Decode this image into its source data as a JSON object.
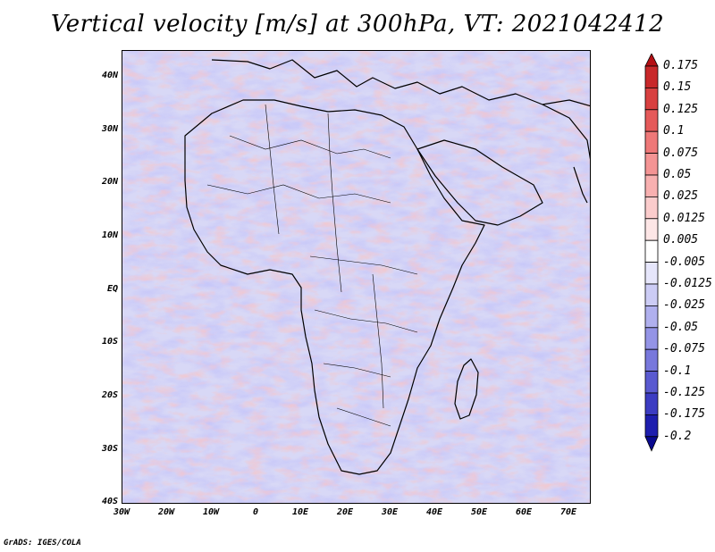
{
  "title": "Vertical velocity [m/s] at 300hPa, VT: 2021042412",
  "credit": "GrADS: IGES/COLA",
  "map": {
    "lat_labels": [
      "40N",
      "30N",
      "20N",
      "10N",
      "EQ",
      "10S",
      "20S",
      "30S",
      "40S"
    ],
    "lon_labels": [
      "30W",
      "20W",
      "10W",
      "0",
      "10E",
      "20E",
      "30E",
      "40E",
      "50E",
      "60E",
      "70E"
    ],
    "lat_range": [
      -40,
      45
    ],
    "lon_range": [
      -30,
      75
    ]
  },
  "colorbar": {
    "levels": [
      "0.175",
      "0.15",
      "0.125",
      "0.1",
      "0.075",
      "0.05",
      "0.025",
      "0.0125",
      "0.005",
      "-0.005",
      "-0.0125",
      "-0.025",
      "-0.05",
      "-0.075",
      "-0.1",
      "-0.125",
      "-0.175",
      "-0.2"
    ],
    "colors": [
      "#b40f14",
      "#c8282a",
      "#d84040",
      "#e55a5a",
      "#ee7878",
      "#f49494",
      "#f8b0b0",
      "#fbcccc",
      "#fde6e6",
      "#ffffff",
      "#e6e6fb",
      "#ccccf5",
      "#b0b0ee",
      "#9494e6",
      "#7878dc",
      "#5a5ad0",
      "#3c3cc2",
      "#1e1eae",
      "#0a0a90"
    ]
  }
}
